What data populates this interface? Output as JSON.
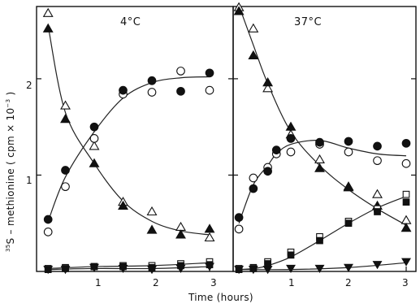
{
  "chart_data": {
    "type": "scatter",
    "xlabel": "Time (hours)",
    "ylabel_prefix": "35",
    "ylabel": "S – methionine ( cpm × 10",
    "ylabel_exp": "−3",
    "ylabel_suffix": " )",
    "xlim": [
      0,
      3.15
    ],
    "ylim": [
      0,
      2.75
    ],
    "x_ticks": [
      1,
      2,
      3
    ],
    "x_tick_labels": [
      "1",
      "2",
      "3"
    ],
    "y_ticks": [
      1,
      2
    ],
    "y_tick_labels": [
      "1",
      "2"
    ],
    "panels": [
      {
        "title": "4°C",
        "series": [
          {
            "marker": "triangle-open",
            "x": [
              0.2,
              0.5,
              1.0,
              1.5,
              2.0,
              2.5,
              3.0
            ],
            "y": [
              2.68,
              1.72,
              1.3,
              0.72,
              0.62,
              0.46,
              0.35
            ]
          },
          {
            "marker": "triangle-filled",
            "x": [
              0.2,
              0.5,
              1.0,
              1.5,
              2.0,
              2.5,
              3.0
            ],
            "y": [
              2.52,
              1.58,
              1.12,
              0.68,
              0.43,
              0.38,
              0.44
            ]
          },
          {
            "marker": "circle-open",
            "x": [
              0.2,
              0.5,
              1.0,
              1.5,
              2.0,
              2.5,
              3.0
            ],
            "y": [
              0.41,
              0.88,
              1.38,
              1.84,
              1.86,
              2.08,
              1.88
            ]
          },
          {
            "marker": "circle-filled",
            "x": [
              0.2,
              0.5,
              1.0,
              1.5,
              2.0,
              2.5,
              3.0
            ],
            "y": [
              0.54,
              1.05,
              1.5,
              1.88,
              1.98,
              1.87,
              2.06
            ]
          },
          {
            "marker": "square-open",
            "x": [
              0.2,
              0.5,
              1.0,
              1.5,
              2.0,
              2.5,
              3.0
            ],
            "y": [
              0.03,
              0.04,
              0.05,
              0.06,
              0.06,
              0.08,
              0.1
            ]
          },
          {
            "marker": "square-filled",
            "x": [
              0.2,
              0.5,
              1.0,
              1.5,
              2.0,
              2.5,
              3.0
            ],
            "y": [
              0.02,
              0.03,
              0.05,
              0.05,
              0.04,
              0.06,
              0.07
            ]
          },
          {
            "marker": "triangle-down-filled",
            "x": [
              0.2,
              0.5,
              1.0,
              1.5,
              2.0,
              2.5,
              3.0
            ],
            "y": [
              0.02,
              0.02,
              0.04,
              0.03,
              0.02,
              0.03,
              0.05
            ]
          }
        ],
        "curves": [
          {
            "x": [
              0.2,
              0.5,
              1.0,
              1.5,
              2.0,
              2.5,
              3.0
            ],
            "y": [
              2.55,
              1.65,
              1.12,
              0.73,
              0.52,
              0.42,
              0.38
            ]
          },
          {
            "x": [
              0.2,
              0.5,
              1.0,
              1.5,
              2.0,
              2.5,
              3.0
            ],
            "y": [
              0.52,
              0.98,
              1.45,
              1.8,
              1.96,
              2.01,
              2.02
            ]
          },
          {
            "x": [
              0.2,
              1.0,
              2.0,
              3.0
            ],
            "y": [
              0.03,
              0.05,
              0.06,
              0.09
            ]
          },
          {
            "x": [
              0.2,
              1.0,
              2.0,
              3.0
            ],
            "y": [
              0.02,
              0.03,
              0.03,
              0.05
            ]
          }
        ]
      },
      {
        "title": "37°C",
        "series": [
          {
            "marker": "triangle-open",
            "x": [
              0.1,
              0.35,
              0.6,
              1.0,
              1.5,
              2.0,
              2.5,
              3.0
            ],
            "y": [
              2.74,
              2.52,
              1.9,
              1.42,
              1.16,
              0.88,
              0.8,
              0.53
            ]
          },
          {
            "marker": "triangle-filled",
            "x": [
              0.1,
              0.35,
              0.6,
              1.0,
              1.5,
              2.0,
              2.5,
              3.0
            ],
            "y": [
              2.7,
              2.24,
              1.96,
              1.5,
              1.07,
              0.87,
              0.68,
              0.45
            ]
          },
          {
            "marker": "circle-open",
            "x": [
              0.1,
              0.35,
              0.6,
              0.75,
              1.0,
              1.5,
              2.0,
              2.5,
              3.0
            ],
            "y": [
              0.44,
              0.97,
              1.08,
              1.22,
              1.24,
              1.32,
              1.24,
              1.15,
              1.12
            ]
          },
          {
            "marker": "circle-filled",
            "x": [
              0.1,
              0.35,
              0.6,
              0.75,
              1.0,
              1.5,
              2.0,
              2.5,
              3.0
            ],
            "y": [
              0.56,
              0.86,
              1.04,
              1.26,
              1.38,
              1.34,
              1.35,
              1.3,
              1.33
            ]
          },
          {
            "marker": "square-open",
            "x": [
              0.1,
              0.35,
              0.6,
              1.0,
              1.5,
              2.0,
              2.5,
              3.0
            ],
            "y": [
              0.03,
              0.04,
              0.1,
              0.2,
              0.36,
              0.52,
              0.65,
              0.8
            ]
          },
          {
            "marker": "square-filled",
            "x": [
              0.1,
              0.35,
              0.6,
              1.0,
              1.5,
              2.0,
              2.5,
              3.0
            ],
            "y": [
              0.02,
              0.03,
              0.08,
              0.17,
              0.32,
              0.5,
              0.62,
              0.72
            ]
          },
          {
            "marker": "triangle-down-filled",
            "x": [
              0.1,
              0.35,
              0.6,
              1.0,
              1.5,
              2.0,
              2.5,
              3.0
            ],
            "y": [
              0.02,
              0.02,
              0.02,
              0.03,
              0.03,
              0.04,
              0.07,
              0.1
            ]
          }
        ],
        "curves": [
          {
            "x": [
              0.1,
              0.35,
              0.6,
              1.0,
              1.5,
              2.0,
              2.5,
              3.0
            ],
            "y": [
              2.76,
              2.35,
              1.95,
              1.45,
              1.1,
              0.85,
              0.65,
              0.48
            ]
          },
          {
            "x": [
              0.1,
              0.35,
              0.6,
              0.75,
              1.0,
              1.5,
              2.0,
              2.5,
              3.0
            ],
            "y": [
              0.5,
              0.9,
              1.1,
              1.22,
              1.32,
              1.36,
              1.28,
              1.22,
              1.2
            ]
          },
          {
            "x": [
              0.1,
              0.35,
              0.6,
              1.0,
              1.5,
              2.0,
              2.5,
              3.0
            ],
            "y": [
              0.02,
              0.03,
              0.06,
              0.15,
              0.32,
              0.5,
              0.66,
              0.78
            ]
          },
          {
            "x": [
              0.1,
              1.0,
              2.0,
              3.0
            ],
            "y": [
              0.02,
              0.02,
              0.04,
              0.09
            ]
          }
        ]
      }
    ]
  }
}
